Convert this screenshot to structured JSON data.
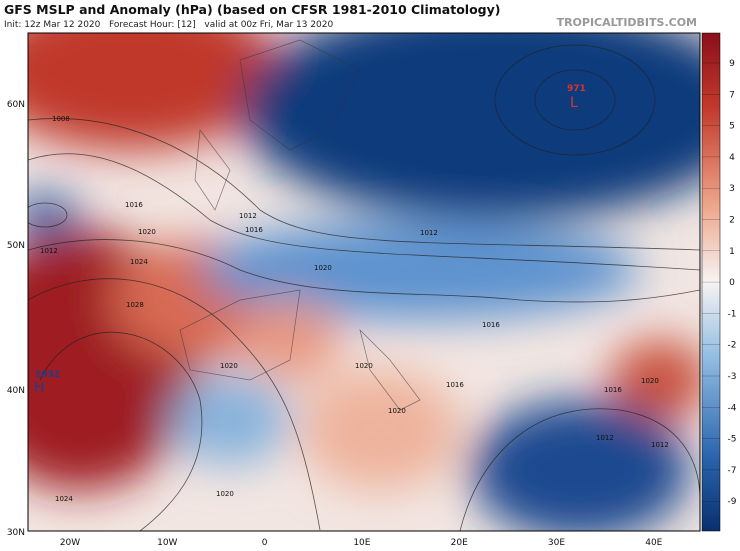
{
  "header": {
    "title": "GFS MSLP and Anomaly (hPa) (based on CFSR 1981-2010 Climatology)",
    "subtitle": "Init: 12z Mar 12 2020   Forecast Hour: [12]   valid at 00z Fri, Mar 13 2020",
    "watermark": "TROPICALTIDBITS.COM"
  },
  "latitude_labels": [
    "60N",
    "50N",
    "40N",
    "30N"
  ],
  "longitude_labels": [
    "20W",
    "10W",
    "0",
    "10E",
    "20E",
    "30E",
    "40E"
  ],
  "colorbar": {
    "ticks": [
      "9",
      "7",
      "5",
      "4",
      "3",
      "2",
      "1",
      "0",
      "-1",
      "-2",
      "-3",
      "-4",
      "-5",
      "-7",
      "-9"
    ]
  },
  "centers": [
    {
      "value": "1032",
      "letter": "H"
    },
    {
      "value": "971",
      "letter": "L"
    }
  ],
  "isobar_labels": [
    "1008",
    "1016",
    "1012",
    "1020",
    "1024",
    "1028",
    "1012",
    "1016",
    "1020",
    "1012",
    "1020",
    "1016",
    "1016",
    "1020",
    "1012",
    "1020",
    "1020",
    "1024",
    "1016",
    "1012",
    "1020"
  ]
}
